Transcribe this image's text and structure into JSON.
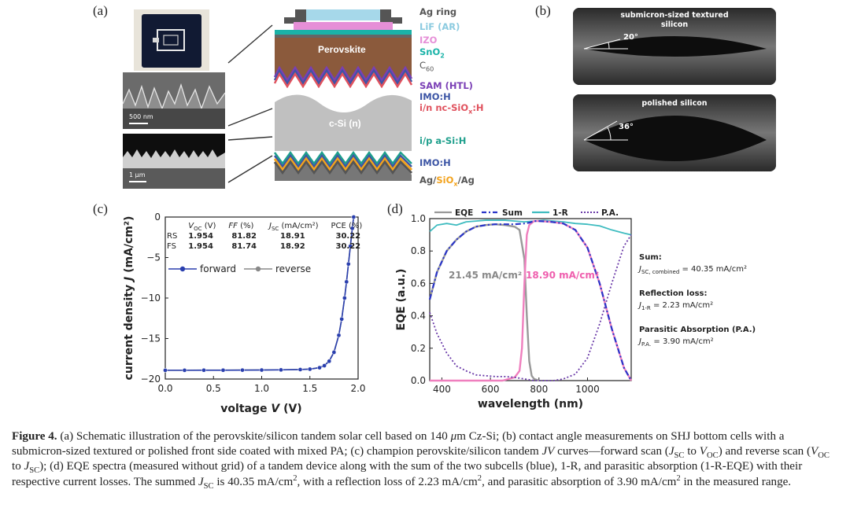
{
  "panels": {
    "a": "(a)",
    "b": "(b)",
    "c": "(c)",
    "d": "(d)"
  },
  "panel_a": {
    "layers": {
      "ag_ring": "Ag ring",
      "lif": "LiF (AR)",
      "izo": "IZO",
      "sno2_main": "SnO",
      "sno2_sub": "2",
      "c60_main": "C",
      "c60_sub": "60",
      "perovskite": "Perovskite",
      "sam": "SAM (HTL)",
      "imo_top": "IMO:H",
      "inc_main": "i/n nc-SiO",
      "inc_sub": "x",
      "inc_tail": ":H",
      "csi": "c-Si (n)",
      "ip": "i/p a-Si:H",
      "imo_bot": "IMO:H",
      "ag_bot_a": "Ag/",
      "ag_bot_b": "SiO",
      "ag_bot_sub": "x",
      "ag_bot_c": "/Ag"
    },
    "scale_top": "500 nm",
    "scale_bottom": "1 μm",
    "colors": {
      "lif": "#a6d8ea",
      "izo": "#e68fd7",
      "sno2": "#1ab3a8",
      "perovskite": "#8b5a3c",
      "sam": "#7a3fb5",
      "imo": "#3c55a5",
      "inc": "#e0525e",
      "ip": "#1e9f8c",
      "agsio": "#f3a31d",
      "ag": "#555555"
    }
  },
  "panel_b": {
    "top_title_1": "submicron-sized textured",
    "top_title_2": "silicon",
    "top_angle": "20°",
    "bottom_title": "polished silicon",
    "bottom_angle": "36°"
  },
  "panel_c": {
    "chart_data": {
      "type": "line",
      "xlabel_main": "voltage ",
      "xlabel_var": "V",
      "xlabel_unit": " (V)",
      "ylabel_main": "current density ",
      "ylabel_var": "J",
      "ylabel_unit": " (mA/cm²)",
      "xlim": [
        0,
        2.0
      ],
      "ylim": [
        -20,
        0
      ],
      "xticks": [
        "0.0",
        "0.5",
        "1.0",
        "1.5",
        "2.0"
      ],
      "yticks": [
        "0",
        "−5",
        "−10",
        "−15",
        "−20"
      ],
      "series": [
        {
          "name": "forward",
          "color": "#2a3fae",
          "marker": "circle",
          "x": [
            0,
            0.2,
            0.4,
            0.6,
            0.8,
            1.0,
            1.2,
            1.4,
            1.5,
            1.6,
            1.65,
            1.7,
            1.75,
            1.8,
            1.83,
            1.86,
            1.88,
            1.9,
            1.92,
            1.94,
            1.954
          ],
          "y": [
            -18.92,
            -18.92,
            -18.91,
            -18.91,
            -18.9,
            -18.89,
            -18.87,
            -18.83,
            -18.78,
            -18.6,
            -18.35,
            -17.8,
            -16.7,
            -14.6,
            -12.6,
            -10.0,
            -8.0,
            -5.8,
            -3.6,
            -1.4,
            0
          ]
        },
        {
          "name": "reverse",
          "color": "#888888",
          "marker": "circle",
          "x": [
            0,
            0.2,
            0.4,
            0.6,
            0.8,
            1.0,
            1.2,
            1.4,
            1.5,
            1.6,
            1.65,
            1.7,
            1.75,
            1.8,
            1.83,
            1.86,
            1.88,
            1.9,
            1.92,
            1.94,
            1.954
          ],
          "y": [
            -18.91,
            -18.91,
            -18.9,
            -18.9,
            -18.89,
            -18.88,
            -18.86,
            -18.82,
            -18.77,
            -18.58,
            -18.32,
            -17.75,
            -16.65,
            -14.55,
            -12.55,
            -9.95,
            -7.95,
            -5.75,
            -3.55,
            -1.35,
            0
          ]
        }
      ]
    },
    "table": {
      "headers": {
        "voc_main": "V",
        "voc_sub": "OC",
        "voc_unit": " (V)",
        "ff_main": "FF",
        "ff_unit": " (%)",
        "jsc_main": "J",
        "jsc_sub": "SC",
        "jsc_unit": " (mA/cm²)",
        "pce": "PCE (%)"
      },
      "rows": [
        {
          "label": "RS",
          "voc": "1.954",
          "ff": "81.82",
          "jsc": "18.91",
          "pce": "30.22"
        },
        {
          "label": "FS",
          "voc": "1.954",
          "ff": "81.74",
          "jsc": "18.92",
          "pce": "30.22"
        }
      ]
    },
    "legend": {
      "forward": "forward",
      "reverse": "reverse"
    }
  },
  "panel_d": {
    "chart_data": {
      "type": "line",
      "xlabel": "wavelength (nm)",
      "ylabel": "EQE (a.u.)",
      "xlim": [
        350,
        1180
      ],
      "ylim": [
        0,
        1.0
      ],
      "xticks": [
        "400",
        "600",
        "800",
        "1000"
      ],
      "yticks": [
        "0.0",
        "0.2",
        "0.4",
        "0.6",
        "0.8",
        "1.0"
      ],
      "legend": [
        "EQE",
        "Sum",
        "1-R",
        "P.A."
      ],
      "series": [
        {
          "name": "EQE (top)",
          "color": "#999999",
          "x": [
            350,
            380,
            420,
            460,
            500,
            540,
            580,
            620,
            660,
            700,
            720,
            740,
            750,
            760,
            770,
            780,
            800
          ],
          "y": [
            0.5,
            0.67,
            0.8,
            0.87,
            0.92,
            0.95,
            0.96,
            0.965,
            0.96,
            0.95,
            0.93,
            0.75,
            0.4,
            0.12,
            0.03,
            0.01,
            0.0
          ]
        },
        {
          "name": "EQE (bottom)",
          "color": "#ef7fbe",
          "x": [
            350,
            500,
            650,
            700,
            720,
            730,
            740,
            750,
            760,
            780,
            800,
            850,
            900,
            950,
            1000,
            1050,
            1100,
            1150,
            1180
          ],
          "y": [
            0.0,
            0.0,
            0.0,
            0.02,
            0.06,
            0.2,
            0.6,
            0.9,
            0.96,
            0.985,
            0.985,
            0.98,
            0.97,
            0.93,
            0.82,
            0.6,
            0.32,
            0.08,
            0.0
          ]
        },
        {
          "name": "Sum",
          "color": "#2a35c9",
          "x": [
            350,
            380,
            420,
            460,
            500,
            540,
            580,
            620,
            660,
            700,
            740,
            760,
            780,
            800,
            850,
            900,
            950,
            1000,
            1050,
            1100,
            1150,
            1180
          ],
          "y": [
            0.5,
            0.67,
            0.8,
            0.87,
            0.92,
            0.95,
            0.96,
            0.965,
            0.965,
            0.965,
            0.97,
            0.975,
            0.985,
            0.985,
            0.98,
            0.97,
            0.93,
            0.82,
            0.6,
            0.32,
            0.08,
            0.0
          ]
        },
        {
          "name": "1-R",
          "color": "#3fbcc0",
          "x": [
            350,
            380,
            420,
            460,
            500,
            540,
            580,
            620,
            660,
            700,
            740,
            780,
            820,
            860,
            900,
            950,
            1000,
            1050,
            1100,
            1150,
            1180
          ],
          "y": [
            0.92,
            0.96,
            0.97,
            0.96,
            0.98,
            0.985,
            0.99,
            0.99,
            0.99,
            0.985,
            0.98,
            0.985,
            0.99,
            0.985,
            0.98,
            0.97,
            0.965,
            0.955,
            0.93,
            0.91,
            0.9
          ]
        },
        {
          "name": "P.A.",
          "color": "#6a3aa8",
          "x": [
            350,
            380,
            420,
            460,
            500,
            540,
            580,
            620,
            660,
            700,
            740,
            780,
            820,
            860,
            900,
            950,
            1000,
            1050,
            1100,
            1150,
            1180
          ],
          "y": [
            0.42,
            0.29,
            0.17,
            0.09,
            0.06,
            0.035,
            0.03,
            0.025,
            0.025,
            0.02,
            0.01,
            0.0,
            0.0,
            0.0,
            0.01,
            0.04,
            0.14,
            0.35,
            0.6,
            0.83,
            0.9
          ]
        }
      ],
      "annotations": {
        "top": "21.45 mA/cm²",
        "bottom": "18.90 mA/cm²"
      }
    },
    "side_notes": {
      "sum_h": "Sum:",
      "sum_var": "J",
      "sum_sub": "SC, combined",
      "sum_val": " = 40.35 mA/cm²",
      "refl_h": "Reflection loss:",
      "refl_var": "J",
      "refl_sub": "1-R",
      "refl_val": " = 2.23 mA/cm²",
      "pa_h": "Parasitic Absorption (P.A.)",
      "pa_var": "J",
      "pa_sub": "P.A.",
      "pa_val": " = 3.90 mA/cm²"
    }
  },
  "caption": {
    "fig": "Figure 4.",
    "t1": " (a) Schematic illustration of the perovskite/silicon tandem solar cell based on 140 ",
    "mu": "μ",
    "t2": "m Cz-Si; (b) contact angle measurements on SHJ bottom cells with a submicron-sized textured or polished front side coated with mixed PA; (c) champion perovskite/silicon tandem ",
    "jv": "JV",
    "t3": " curves—forward scan (",
    "t4": " to ",
    "t5": ") and reverse scan (",
    "t6": " to ",
    "t7": "); (d) EQE spectra (measured without grid) of a tandem device along with the sum of the two subcells (blue), 1-R, and parasitic absorption (1-R-EQE) with their respective current losses. The summed ",
    "t8": " is 40.35 mA/cm",
    "t9": ", with a reflection loss of 2.23 mA/cm",
    "t10": ", and parasitic absorption of 3.90 mA/cm",
    "t11": " in the measured range.",
    "sup2": "2",
    "J": "J",
    "SC": "SC",
    "V": "V",
    "OC": "OC"
  }
}
